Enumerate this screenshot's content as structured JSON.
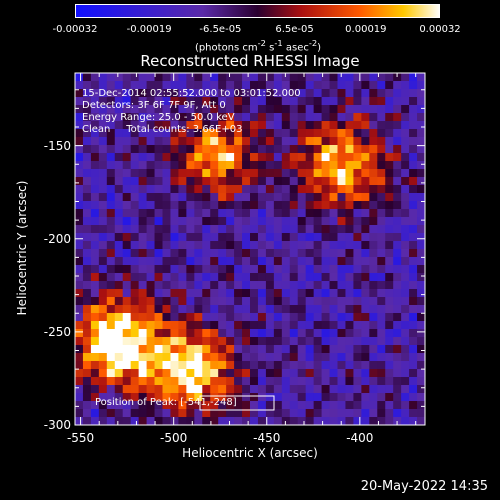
{
  "chart_data": {
    "type": "heatmap",
    "title": "Reconstructed RHESSI Image",
    "xlabel": "Heliocentric X (arcsec)",
    "ylabel": "Heliocentric Y (arcsec)",
    "xlim": [
      -553,
      -365
    ],
    "ylim": [
      -300,
      -111
    ],
    "x_ticks": [
      "-550",
      "-500",
      "-450",
      "-400"
    ],
    "x_tick_values": [
      -550,
      -500,
      -450,
      -400
    ],
    "y_ticks": [
      "-150",
      "-200",
      "-250",
      "-300"
    ],
    "y_tick_values": [
      -150,
      -200,
      -250,
      -300
    ],
    "colorbar": {
      "ticks": [
        "-0.00032",
        "-0.00019",
        "-6.5e-05",
        "6.5e-05",
        "0.00019",
        "0.00032"
      ],
      "tick_values": [
        -0.00032,
        -0.00019,
        -6.5e-05,
        6.5e-05,
        0.00019,
        0.00032
      ],
      "range": [
        -0.00032,
        0.00032
      ],
      "units": "(photons cm",
      "units_exp1": "-2",
      "units_mid": " s",
      "units_exp2": "-1",
      "units_end": " asec",
      "units_exp3": "-2",
      "units_close": ")"
    },
    "info_lines": [
      "15-Dec-2014 02:55:52.000 to 03:01:52.000",
      "Detectors: 3F 6F 7F 9F, Att 0",
      "Energy Range: 25.0 - 50.0 keV",
      "Clean     Total counts: 3.66E+03"
    ],
    "peak_label": "Position of Peak: [-541,-248]",
    "peak_position": [
      -541,
      -248
    ],
    "sources": [
      {
        "x": -530,
        "y": -255,
        "strength": 1.0
      },
      {
        "x": -490,
        "y": -270,
        "strength": 0.9
      },
      {
        "x": -475,
        "y": -155,
        "strength": 0.65
      },
      {
        "x": -410,
        "y": -160,
        "strength": 0.8
      }
    ]
  },
  "footer": {
    "date": "20-May-2022 14:35"
  }
}
